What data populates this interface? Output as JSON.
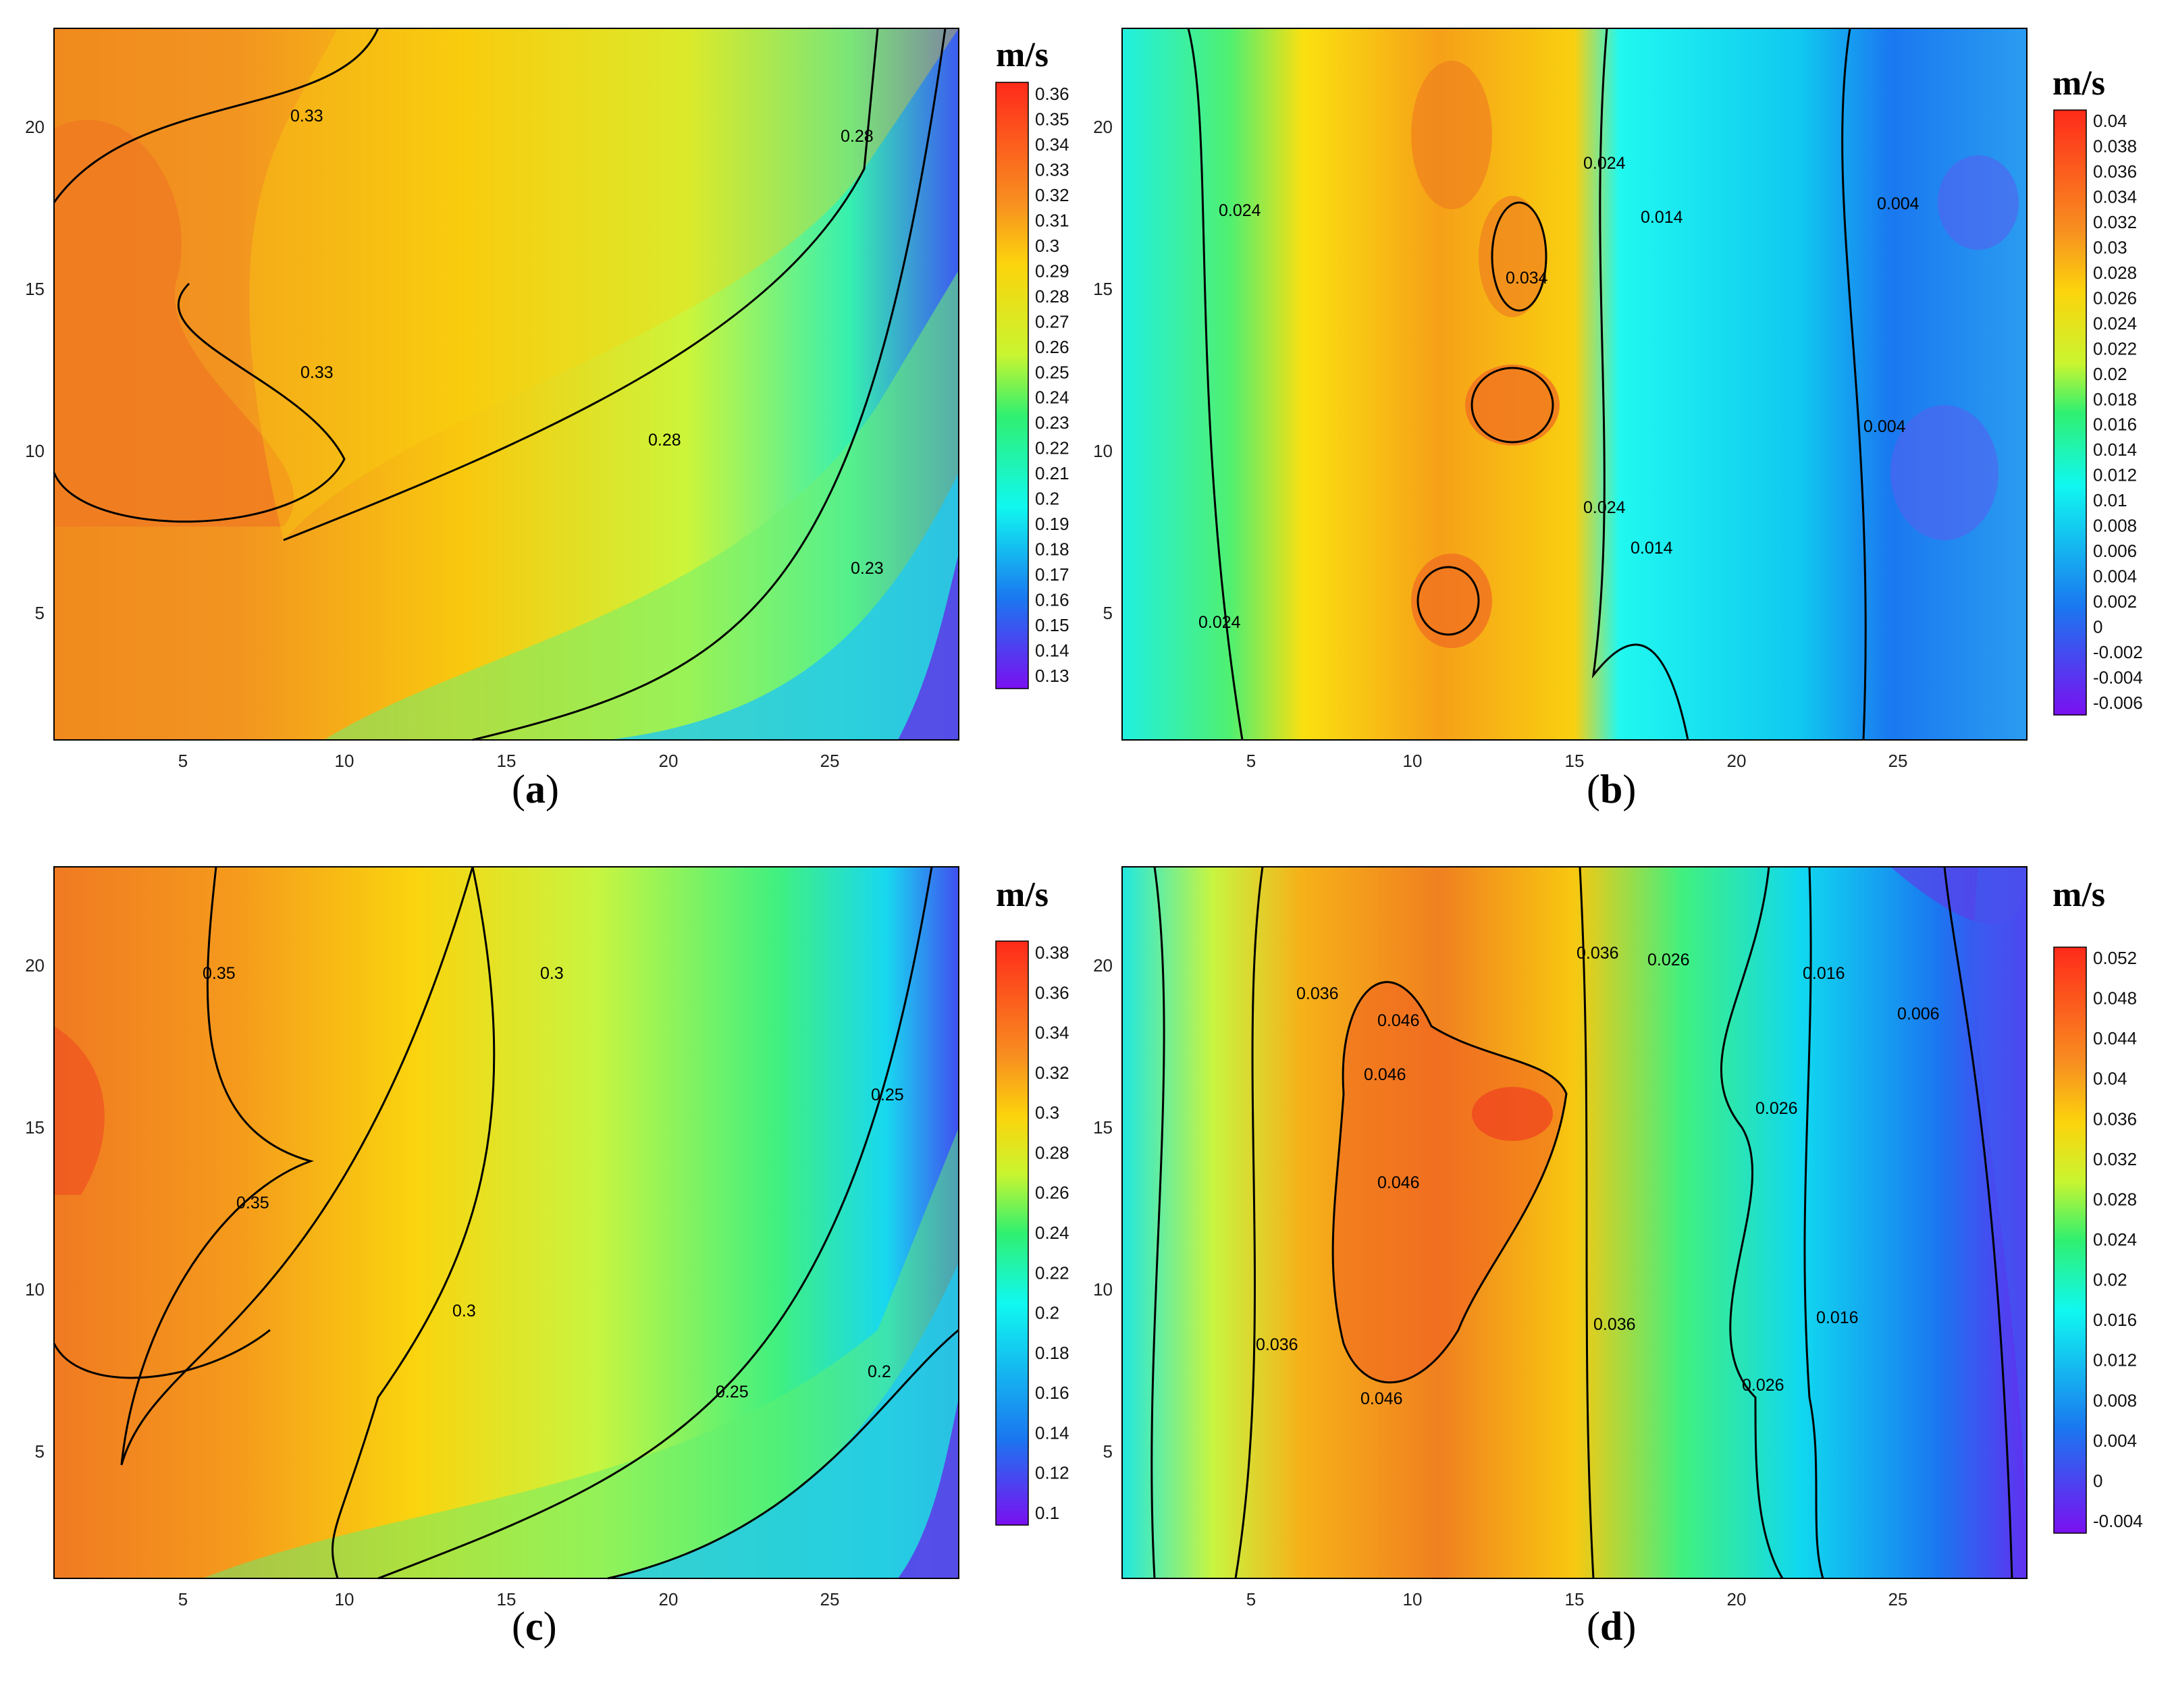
{
  "figure": {
    "panels": [
      {
        "id": "a",
        "caption_letter": "a",
        "caption_open": "(",
        "caption_close": ")"
      },
      {
        "id": "b",
        "caption_letter": "b",
        "caption_open": "(",
        "caption_close": ")"
      },
      {
        "id": "c",
        "caption_letter": "c",
        "caption_open": "(",
        "caption_close": ")"
      },
      {
        "id": "d",
        "caption_letter": "d",
        "caption_open": "(",
        "caption_close": ")"
      }
    ]
  },
  "chart_data": [
    {
      "panel": "a",
      "type": "heatmap",
      "subtype": "filled-contour",
      "xlim": [
        1,
        29
      ],
      "ylim": [
        1,
        23
      ],
      "x_ticks": [
        5,
        10,
        15,
        20,
        25
      ],
      "y_ticks": [
        5,
        10,
        15,
        20
      ],
      "colorbar_unit": "m/s",
      "colorbar_levels": [
        "0.36",
        "0.35",
        "0.34",
        "0.33",
        "0.32",
        "0.31",
        "0.3",
        "0.29",
        "0.28",
        "0.27",
        "0.26",
        "0.25",
        "0.24",
        "0.23",
        "0.22",
        "0.21",
        "0.2",
        "0.19",
        "0.18",
        "0.17",
        "0.16",
        "0.15",
        "0.14",
        "0.13"
      ],
      "contour_labels": [
        "0.33",
        "0.33",
        "0.28",
        "0.28",
        "0.23"
      ]
    },
    {
      "panel": "b",
      "type": "heatmap",
      "subtype": "filled-contour",
      "xlim": [
        1,
        29
      ],
      "ylim": [
        1,
        23
      ],
      "x_ticks": [
        5,
        10,
        15,
        20,
        25
      ],
      "y_ticks": [
        5,
        10,
        15,
        20
      ],
      "colorbar_unit": "m/s",
      "colorbar_levels": [
        "0.04",
        "0.038",
        "0.036",
        "0.034",
        "0.032",
        "0.03",
        "0.028",
        "0.026",
        "0.024",
        "0.022",
        "0.02",
        "0.018",
        "0.016",
        "0.014",
        "0.012",
        "0.01",
        "0.008",
        "0.006",
        "0.004",
        "0.002",
        "0",
        "-0.002",
        "-0.004",
        "-0.006"
      ],
      "contour_labels": [
        "0.024",
        "0.024",
        "0.024",
        "0.024",
        "0.034",
        "0.014",
        "0.014",
        "0.004",
        "0.004"
      ]
    },
    {
      "panel": "c",
      "type": "heatmap",
      "subtype": "filled-contour",
      "xlim": [
        1,
        29
      ],
      "ylim": [
        1,
        23
      ],
      "x_ticks": [
        5,
        10,
        15,
        20,
        25
      ],
      "y_ticks": [
        5,
        10,
        15,
        20
      ],
      "colorbar_unit": "m/s",
      "colorbar_levels": [
        "0.38",
        "0.36",
        "0.34",
        "0.32",
        "0.3",
        "0.28",
        "0.26",
        "0.24",
        "0.22",
        "0.2",
        "0.18",
        "0.16",
        "0.14",
        "0.12",
        "0.1"
      ],
      "contour_labels": [
        "0.35",
        "0.35",
        "0.3",
        "0.3",
        "0.25",
        "0.25",
        "0.2"
      ]
    },
    {
      "panel": "d",
      "type": "heatmap",
      "subtype": "filled-contour",
      "xlim": [
        1,
        29
      ],
      "ylim": [
        1,
        23
      ],
      "x_ticks": [
        5,
        10,
        15,
        20,
        25
      ],
      "y_ticks": [
        5,
        10,
        15,
        20
      ],
      "colorbar_unit": "m/s",
      "colorbar_levels": [
        "0.052",
        "0.048",
        "0.044",
        "0.04",
        "0.036",
        "0.032",
        "0.028",
        "0.024",
        "0.02",
        "0.016",
        "0.012",
        "0.008",
        "0.004",
        "0",
        "-0.004"
      ],
      "contour_labels": [
        "0.036",
        "0.036",
        "0.036",
        "0.036",
        "0.046",
        "0.046",
        "0.046",
        "0.046",
        "0.026",
        "0.026",
        "0.026",
        "0.016",
        "0.016",
        "0.006"
      ]
    }
  ]
}
